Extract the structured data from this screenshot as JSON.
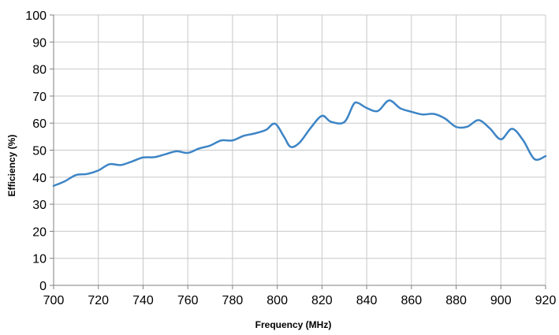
{
  "chart_data": {
    "type": "line",
    "title": "",
    "xlabel": "Frequency (MHz)",
    "ylabel": "Efficiency (%)",
    "xlim": [
      700,
      920
    ],
    "ylim": [
      0,
      100
    ],
    "x_ticks": [
      "700",
      "720",
      "740",
      "760",
      "780",
      "800",
      "820",
      "840",
      "860",
      "880",
      "900",
      "920"
    ],
    "y_ticks": [
      "0",
      "10",
      "20",
      "30",
      "40",
      "50",
      "60",
      "70",
      "80",
      "90",
      "100"
    ],
    "grid": true,
    "legend": "none",
    "series": [
      {
        "color": "#3d85c6",
        "points": [
          [
            700,
            36.8
          ],
          [
            705,
            38.5
          ],
          [
            710,
            40.8
          ],
          [
            715,
            41.2
          ],
          [
            720,
            42.5
          ],
          [
            725,
            44.8
          ],
          [
            730,
            44.5
          ],
          [
            735,
            45.8
          ],
          [
            740,
            47.3
          ],
          [
            745,
            47.4
          ],
          [
            750,
            48.5
          ],
          [
            755,
            49.6
          ],
          [
            760,
            49.0
          ],
          [
            765,
            50.6
          ],
          [
            770,
            51.7
          ],
          [
            775,
            53.6
          ],
          [
            780,
            53.6
          ],
          [
            785,
            55.3
          ],
          [
            790,
            56.2
          ],
          [
            795,
            57.5
          ],
          [
            799,
            59.8
          ],
          [
            803,
            55.0
          ],
          [
            806,
            51.2
          ],
          [
            810,
            52.8
          ],
          [
            815,
            58.3
          ],
          [
            820,
            62.7
          ],
          [
            824,
            60.5
          ],
          [
            830,
            60.4
          ],
          [
            834,
            66.8
          ],
          [
            836,
            67.5
          ],
          [
            840,
            65.6
          ],
          [
            845,
            64.5
          ],
          [
            850,
            68.4
          ],
          [
            855,
            65.5
          ],
          [
            860,
            64.2
          ],
          [
            865,
            63.2
          ],
          [
            870,
            63.4
          ],
          [
            875,
            61.7
          ],
          [
            880,
            58.6
          ],
          [
            885,
            58.7
          ],
          [
            890,
            61.1
          ],
          [
            895,
            58.1
          ],
          [
            900,
            54.0
          ],
          [
            905,
            57.9
          ],
          [
            910,
            53.6
          ],
          [
            915,
            46.7
          ],
          [
            920,
            47.8
          ]
        ]
      }
    ]
  }
}
